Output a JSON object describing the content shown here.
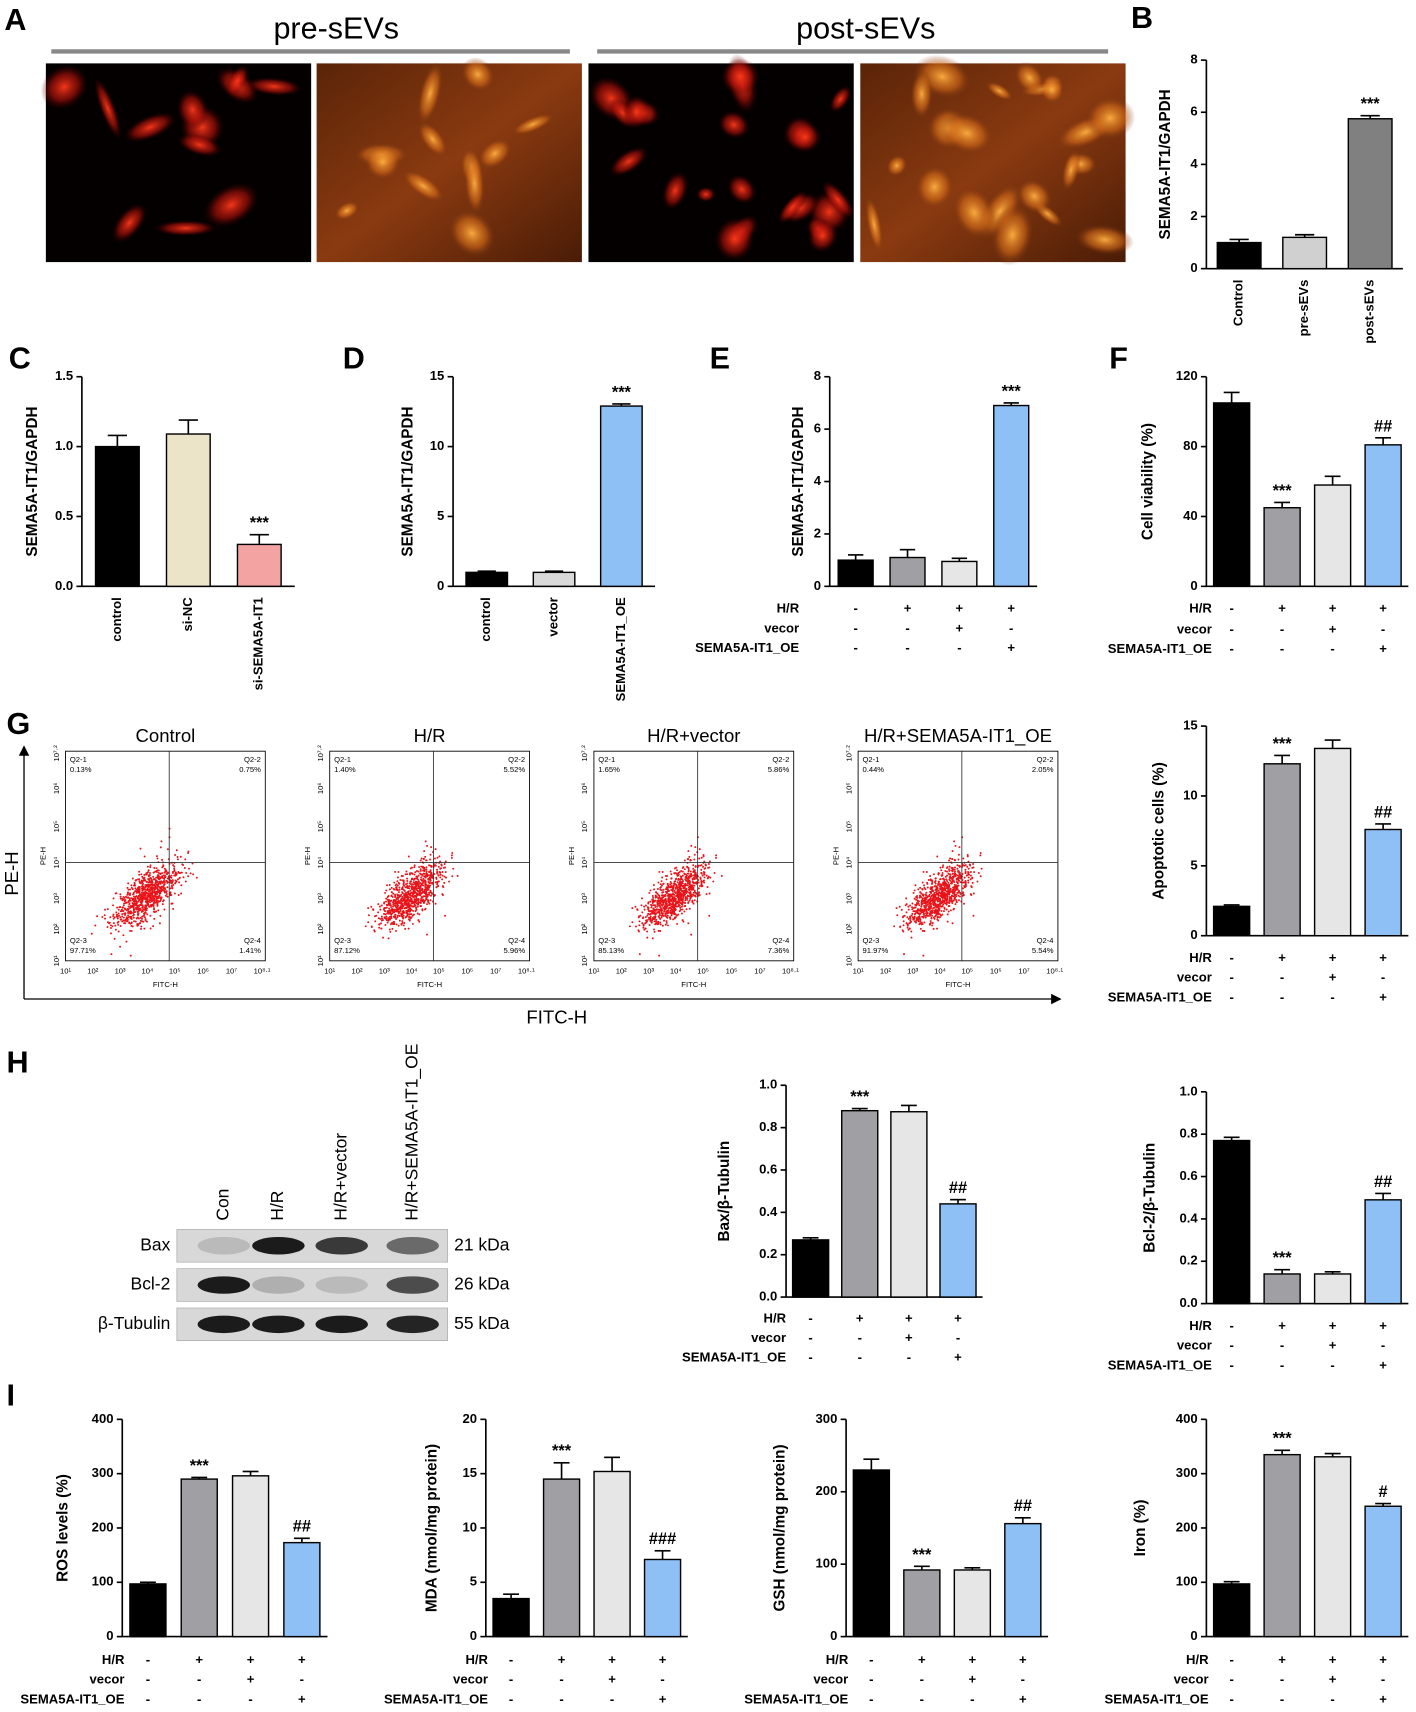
{
  "panel_labels": [
    "A",
    "B",
    "C",
    "D",
    "E",
    "F",
    "G",
    "H",
    "I"
  ],
  "panel_a": {
    "titles": [
      "pre-sEVs",
      "post-sEVs"
    ]
  },
  "flow_cytometry": {
    "axis_y_label": "PE-H",
    "axis_x_label": "FITC-H",
    "plot_x_label": "FITC-H",
    "plot_y_label": "PE-H",
    "xticks": [
      "10¹",
      "10²",
      "10³",
      "10⁴",
      "10⁵",
      "10⁶",
      "10⁷",
      "10⁸·¹"
    ],
    "yticks": [
      "10¹",
      "10²",
      "10³",
      "10⁴",
      "10⁵",
      "10⁶",
      "10⁷·²"
    ],
    "plots": [
      {
        "title": "Control",
        "quadrants": [
          {
            "name": "Q2-1",
            "percent": "0.13%"
          },
          {
            "name": "Q2-2",
            "percent": "0.75%"
          },
          {
            "name": "Q2-3",
            "percent": "97.71%"
          },
          {
            "name": "Q2-4",
            "percent": "1.41%"
          }
        ]
      },
      {
        "title": "H/R",
        "quadrants": [
          {
            "name": "Q2-1",
            "percent": "1.40%"
          },
          {
            "name": "Q2-2",
            "percent": "5.52%"
          },
          {
            "name": "Q2-3",
            "percent": "87.12%"
          },
          {
            "name": "Q2-4",
            "percent": "5.96%"
          }
        ]
      },
      {
        "title": "H/R+vector",
        "quadrants": [
          {
            "name": "Q2-1",
            "percent": "1.65%"
          },
          {
            "name": "Q2-2",
            "percent": "5.86%"
          },
          {
            "name": "Q2-3",
            "percent": "85.13%"
          },
          {
            "name": "Q2-4",
            "percent": "7.36%"
          }
        ]
      },
      {
        "title": "H/R+SEMA5A-IT1_OE",
        "quadrants": [
          {
            "name": "Q2-1",
            "percent": "0.44%"
          },
          {
            "name": "Q2-2",
            "percent": "2.05%"
          },
          {
            "name": "Q2-3",
            "percent": "91.97%"
          },
          {
            "name": "Q2-4",
            "percent": "5.54%"
          }
        ]
      }
    ]
  },
  "western_blot": {
    "lanes": [
      "Con",
      "H/R",
      "H/R+vector",
      "H/R+SEMA5A-IT1_OE"
    ],
    "rows": [
      {
        "name": "Bax",
        "size": "21 kDa"
      },
      {
        "name": "Bcl-2",
        "size": "26 kDa"
      },
      {
        "name": "β-Tubulin",
        "size": "55 kDa"
      }
    ]
  },
  "chart_data": [
    {
      "type": "bar",
      "ylabel": "SEMA5A-IT1/GAPDH",
      "categories": [
        "Control",
        "pre-sEVs",
        "post-sEVs"
      ],
      "values": [
        1.0,
        1.2,
        5.75
      ],
      "errors": [
        0.12,
        0.1,
        0.12
      ],
      "colors": [
        "#000000",
        "#d0d0d0",
        "#808080"
      ],
      "annotations": [
        null,
        null,
        "***"
      ],
      "ylim": [
        0,
        8
      ],
      "yticks": [
        0,
        2,
        4,
        6,
        8
      ]
    },
    {
      "type": "bar",
      "ylabel": "SEMA5A-IT1/GAPDH",
      "categories": [
        "control",
        "si-NC",
        "si-SEMA5A-IT1"
      ],
      "values": [
        1.0,
        1.09,
        0.3
      ],
      "errors": [
        0.08,
        0.1,
        0.07
      ],
      "colors": [
        "#000000",
        "#ece4c8",
        "#f4a3a3"
      ],
      "annotations": [
        null,
        null,
        "***"
      ],
      "ylim": [
        0,
        1.5
      ],
      "yticks": [
        {
          "value": 0,
          "label": "0.0"
        },
        0.5,
        {
          "value": 1,
          "label": "1.0"
        },
        1.5
      ]
    },
    {
      "type": "bar",
      "ylabel": "SEMA5A-IT1/GAPDH",
      "categories": [
        "control",
        "vector",
        "SEMA5A-IT1_OE"
      ],
      "values": [
        1.0,
        1.0,
        12.9
      ],
      "errors": [
        0.08,
        0.08,
        0.15
      ],
      "colors": [
        "#000000",
        "#d9d9d9",
        "#8ec0f5"
      ],
      "annotations": [
        null,
        null,
        "***"
      ],
      "ylim": [
        0,
        15
      ],
      "yticks": [
        0,
        5,
        10,
        15
      ]
    },
    {
      "type": "bar",
      "ylabel": "SEMA5A-IT1/GAPDH",
      "conditions": [
        {
          "name": "H/R",
          "marks": [
            "-",
            "+",
            "+",
            "+"
          ]
        },
        {
          "name": "vecor",
          "marks": [
            "-",
            "-",
            "+",
            "-"
          ]
        },
        {
          "name": "SEMA5A-IT1_OE",
          "marks": [
            "-",
            "-",
            "-",
            "+"
          ]
        }
      ],
      "values": [
        1.0,
        1.1,
        0.95,
        6.9
      ],
      "errors": [
        0.2,
        0.3,
        0.12,
        0.1
      ],
      "colors": [
        "#000000",
        "#a0a0a4",
        "#e6e6e6",
        "#8ec0f5"
      ],
      "annotations": [
        null,
        null,
        null,
        "***"
      ],
      "ylim": [
        0,
        8
      ],
      "yticks": [
        0,
        2,
        4,
        6,
        8
      ]
    },
    {
      "type": "bar",
      "ylabel": "Cell viability (%)",
      "conditions": [
        {
          "name": "H/R",
          "marks": [
            "-",
            "+",
            "+",
            "+"
          ]
        },
        {
          "name": "vecor",
          "marks": [
            "-",
            "-",
            "+",
            "-"
          ]
        },
        {
          "name": "SEMA5A-IT1_OE",
          "marks": [
            "-",
            "-",
            "-",
            "+"
          ]
        }
      ],
      "values": [
        105,
        45,
        58,
        81
      ],
      "errors": [
        6,
        3,
        5,
        4
      ],
      "colors": [
        "#000000",
        "#a0a0a4",
        "#e6e6e6",
        "#8ec0f5"
      ],
      "annotations": [
        null,
        "***",
        null,
        "##"
      ],
      "ylim": [
        0,
        120
      ],
      "yticks": [
        0,
        40,
        80,
        120
      ]
    },
    {
      "type": "bar",
      "ylabel": "Apoptotic cells (%)",
      "conditions": [
        {
          "name": "H/R",
          "marks": [
            "-",
            "+",
            "+",
            "+"
          ]
        },
        {
          "name": "vecor",
          "marks": [
            "-",
            "-",
            "+",
            "-"
          ]
        },
        {
          "name": "SEMA5A-IT1_OE",
          "marks": [
            "-",
            "-",
            "-",
            "+"
          ]
        }
      ],
      "values": [
        2.1,
        12.3,
        13.4,
        7.6
      ],
      "errors": [
        0.1,
        0.6,
        0.6,
        0.4
      ],
      "colors": [
        "#000000",
        "#a0a0a4",
        "#e6e6e6",
        "#8ec0f5"
      ],
      "annotations": [
        null,
        "***",
        null,
        "##"
      ],
      "ylim": [
        0,
        15
      ],
      "yticks": [
        0,
        5,
        10,
        15
      ]
    },
    {
      "type": "bar",
      "ylabel": "Bax/β-Tubulin",
      "conditions": [
        {
          "name": "H/R",
          "marks": [
            "-",
            "+",
            "+",
            "+"
          ]
        },
        {
          "name": "vecor",
          "marks": [
            "-",
            "-",
            "+",
            "-"
          ]
        },
        {
          "name": "SEMA5A-IT1_OE",
          "marks": [
            "-",
            "-",
            "-",
            "+"
          ]
        }
      ],
      "values": [
        0.27,
        0.88,
        0.875,
        0.44
      ],
      "errors": [
        0.01,
        0.01,
        0.03,
        0.02
      ],
      "colors": [
        "#000000",
        "#a0a0a4",
        "#e6e6e6",
        "#8ec0f5"
      ],
      "annotations": [
        null,
        "***",
        null,
        "##"
      ],
      "ylim": [
        0,
        1
      ],
      "yticks": [
        {
          "value": 0,
          "label": "0.0"
        },
        0.2,
        0.4,
        0.6,
        0.8,
        {
          "value": 1,
          "label": "1.0"
        }
      ]
    },
    {
      "type": "bar",
      "ylabel": "Bcl-2/β-Tubulin",
      "conditions": [
        {
          "name": "H/R",
          "marks": [
            "-",
            "+",
            "+",
            "+"
          ]
        },
        {
          "name": "vecor",
          "marks": [
            "-",
            "-",
            "+",
            "-"
          ]
        },
        {
          "name": "SEMA5A-IT1_OE",
          "marks": [
            "-",
            "-",
            "-",
            "+"
          ]
        }
      ],
      "values": [
        0.77,
        0.14,
        0.14,
        0.49
      ],
      "errors": [
        0.015,
        0.02,
        0.01,
        0.03
      ],
      "colors": [
        "#000000",
        "#a0a0a4",
        "#e6e6e6",
        "#8ec0f5"
      ],
      "annotations": [
        null,
        "***",
        null,
        "##"
      ],
      "ylim": [
        0,
        1
      ],
      "yticks": [
        {
          "value": 0,
          "label": "0.0"
        },
        0.2,
        0.4,
        0.6,
        0.8,
        {
          "value": 1,
          "label": "1.0"
        }
      ]
    },
    {
      "type": "bar",
      "ylabel": "ROS levels (%)",
      "conditions": [
        {
          "name": "H/R",
          "marks": [
            "-",
            "+",
            "+",
            "+"
          ]
        },
        {
          "name": "vecor",
          "marks": [
            "-",
            "-",
            "+",
            "-"
          ]
        },
        {
          "name": "SEMA5A-IT1_OE",
          "marks": [
            "-",
            "-",
            "-",
            "+"
          ]
        }
      ],
      "values": [
        97,
        290,
        296,
        173
      ],
      "errors": [
        3,
        3,
        8,
        8
      ],
      "colors": [
        "#000000",
        "#a0a0a4",
        "#e6e6e6",
        "#8ec0f5"
      ],
      "annotations": [
        null,
        "***",
        null,
        "##"
      ],
      "ylim": [
        0,
        400
      ],
      "yticks": [
        0,
        100,
        200,
        300,
        400
      ]
    },
    {
      "type": "bar",
      "ylabel": "MDA (nmol/mg protein)",
      "conditions": [
        {
          "name": "H/R",
          "marks": [
            "-",
            "+",
            "+",
            "+"
          ]
        },
        {
          "name": "vecor",
          "marks": [
            "-",
            "-",
            "+",
            "-"
          ]
        },
        {
          "name": "SEMA5A-IT1_OE",
          "marks": [
            "-",
            "-",
            "-",
            "+"
          ]
        }
      ],
      "values": [
        3.5,
        14.5,
        15.2,
        7.1
      ],
      "errors": [
        0.4,
        1.5,
        1.3,
        0.8
      ],
      "colors": [
        "#000000",
        "#a0a0a4",
        "#e6e6e6",
        "#8ec0f5"
      ],
      "annotations": [
        null,
        "***",
        null,
        "###"
      ],
      "ylim": [
        0,
        20
      ],
      "yticks": [
        0,
        5,
        10,
        15,
        20
      ]
    },
    {
      "type": "bar",
      "ylabel": "GSH (nmol/mg protein)",
      "conditions": [
        {
          "name": "H/R",
          "marks": [
            "-",
            "+",
            "+",
            "+"
          ]
        },
        {
          "name": "vecor",
          "marks": [
            "-",
            "-",
            "+",
            "-"
          ]
        },
        {
          "name": "SEMA5A-IT1_OE",
          "marks": [
            "-",
            "-",
            "-",
            "+"
          ]
        }
      ],
      "values": [
        230,
        92,
        92,
        156
      ],
      "errors": [
        15,
        5,
        3,
        8
      ],
      "colors": [
        "#000000",
        "#a0a0a4",
        "#e6e6e6",
        "#8ec0f5"
      ],
      "annotations": [
        null,
        "***",
        null,
        "##"
      ],
      "ylim": [
        0,
        300
      ],
      "yticks": [
        0,
        100,
        200,
        300
      ]
    },
    {
      "type": "bar",
      "ylabel": "Iron (%)",
      "conditions": [
        {
          "name": "H/R",
          "marks": [
            "-",
            "+",
            "+",
            "+"
          ]
        },
        {
          "name": "vecor",
          "marks": [
            "-",
            "-",
            "+",
            "-"
          ]
        },
        {
          "name": "SEMA5A-IT1_OE",
          "marks": [
            "-",
            "-",
            "-",
            "+"
          ]
        }
      ],
      "values": [
        97,
        335,
        331,
        240
      ],
      "errors": [
        4,
        8,
        6,
        5
      ],
      "colors": [
        "#000000",
        "#a0a0a4",
        "#e6e6e6",
        "#8ec0f5"
      ],
      "annotations": [
        null,
        "***",
        null,
        "#"
      ],
      "ylim": [
        0,
        400
      ],
      "yticks": [
        0,
        100,
        200,
        300,
        400
      ]
    }
  ]
}
